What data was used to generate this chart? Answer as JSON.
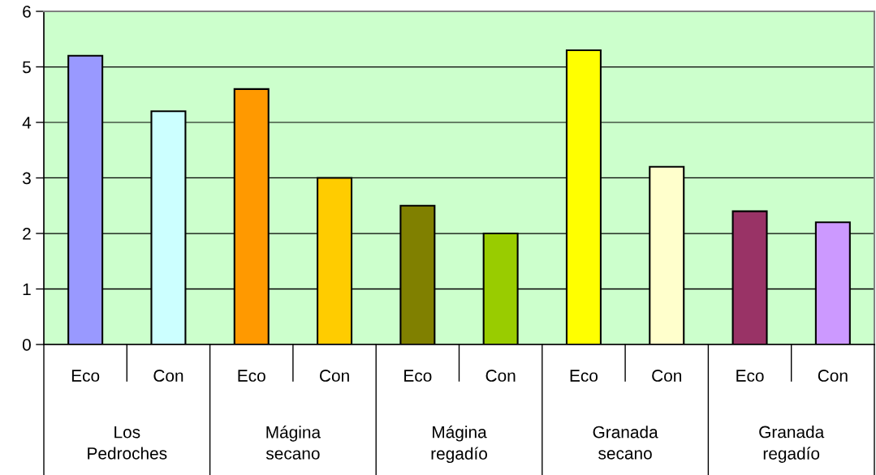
{
  "chart_data": {
    "type": "bar",
    "categories": [
      "Eco",
      "Con",
      "Eco",
      "Con",
      "Eco",
      "Con",
      "Eco",
      "Con",
      "Eco",
      "Con"
    ],
    "values": [
      5.2,
      4.2,
      4.6,
      3.0,
      2.5,
      2.0,
      5.3,
      3.2,
      2.4,
      2.2
    ],
    "colors": [
      "#9999ff",
      "#ccffff",
      "#ff9900",
      "#ffcc00",
      "#808000",
      "#99cc00",
      "#ffff00",
      "#ffffcc",
      "#993366",
      "#cc99ff"
    ],
    "ylim": [
      0,
      6
    ],
    "yticks": [
      0,
      1,
      2,
      3,
      4,
      5,
      6
    ],
    "grid": "y",
    "annotations": [
      "Los\nPedroches",
      "Mágina\nsecano",
      "Mágina\nregadío",
      "Granada\nsecano",
      "Granada\nregadío"
    ]
  }
}
